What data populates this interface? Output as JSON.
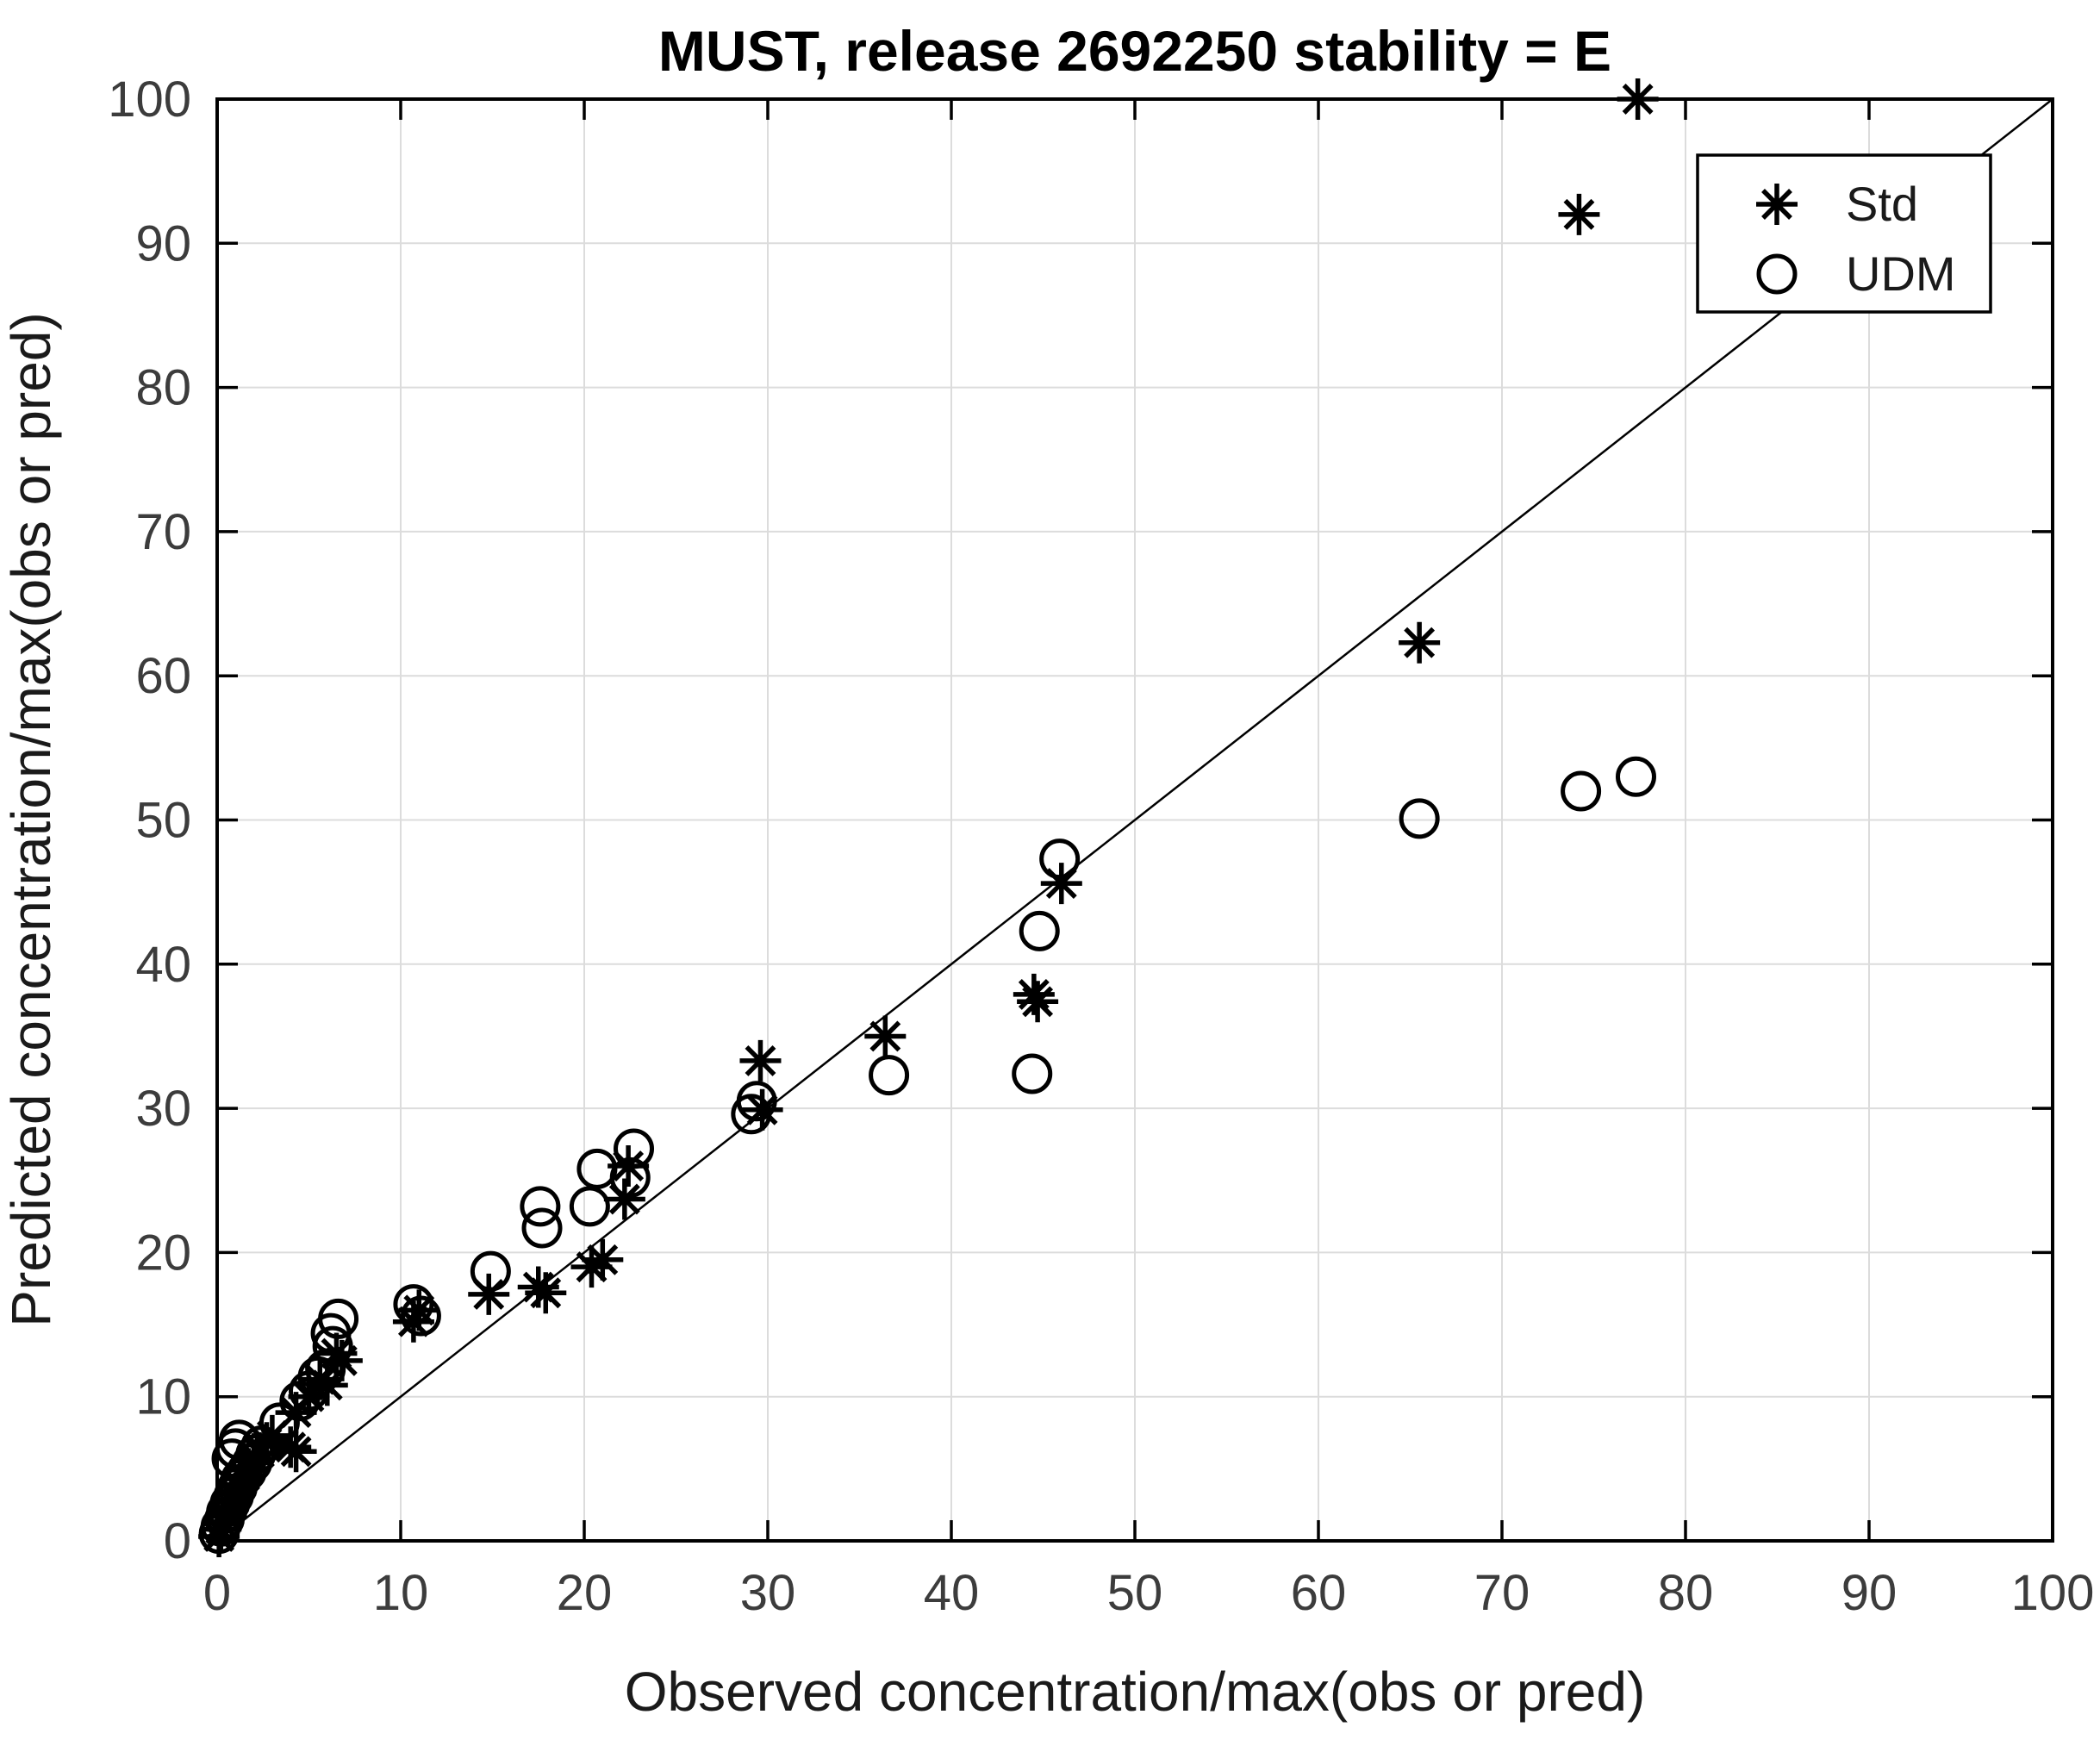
{
  "figure": {
    "background": "#ffffff"
  },
  "chart_data": {
    "type": "scatter",
    "title": "MUST, release 2692250 stability = E",
    "xlabel": "Observed concentration/max(obs or pred)",
    "ylabel": "Predicted concentration/max(obs or pred)",
    "xlim": [
      0,
      100
    ],
    "ylim": [
      0,
      100
    ],
    "xticks": [
      0,
      10,
      20,
      30,
      40,
      50,
      60,
      70,
      80,
      90,
      100
    ],
    "yticks": [
      0,
      10,
      20,
      30,
      40,
      50,
      60,
      70,
      80,
      90,
      100
    ],
    "grid": true,
    "legend_position": "top-right",
    "reference_line": {
      "name": "1:1 line",
      "from": [
        0,
        0
      ],
      "to": [
        100,
        100
      ]
    },
    "series": [
      {
        "name": "Std",
        "marker": "asterisk",
        "color": "#000000",
        "points": [
          [
            0.1,
            0.3
          ],
          [
            0.2,
            0.8
          ],
          [
            0.3,
            1.2
          ],
          [
            0.5,
            1.7
          ],
          [
            0.6,
            2.2
          ],
          [
            0.8,
            2.8
          ],
          [
            1.0,
            3.3
          ],
          [
            1.2,
            3.9
          ],
          [
            1.5,
            4.5
          ],
          [
            1.7,
            5.0
          ],
          [
            2.0,
            5.6
          ],
          [
            2.3,
            6.1
          ],
          [
            2.7,
            6.8
          ],
          [
            3.0,
            7.3
          ],
          [
            4.0,
            6.5
          ],
          [
            4.3,
            6.2
          ],
          [
            4.3,
            8.9
          ],
          [
            5.0,
            10.0
          ],
          [
            5.6,
            11.2
          ],
          [
            6.0,
            10.8
          ],
          [
            6.5,
            13.0
          ],
          [
            6.8,
            12.5
          ],
          [
            10.7,
            15.2
          ],
          [
            11.0,
            16.0
          ],
          [
            14.8,
            17.1
          ],
          [
            17.5,
            17.6
          ],
          [
            17.9,
            17.2
          ],
          [
            20.4,
            19.0
          ],
          [
            21.0,
            19.5
          ],
          [
            22.2,
            23.7
          ],
          [
            22.4,
            26.0
          ],
          [
            29.7,
            29.9
          ],
          [
            29.6,
            33.3
          ],
          [
            36.4,
            35.0
          ],
          [
            44.5,
            37.9
          ],
          [
            44.7,
            37.4
          ],
          [
            46.0,
            45.6
          ],
          [
            65.5,
            62.3
          ],
          [
            74.2,
            92.0
          ],
          [
            77.4,
            100.0
          ]
        ]
      },
      {
        "name": "UDM",
        "marker": "circle",
        "color": "#000000",
        "points": [
          [
            0.1,
            0.5
          ],
          [
            0.2,
            1.0
          ],
          [
            0.4,
            1.5
          ],
          [
            0.5,
            2.0
          ],
          [
            0.7,
            2.6
          ],
          [
            0.9,
            3.1
          ],
          [
            1.1,
            3.7
          ],
          [
            1.3,
            4.3
          ],
          [
            1.6,
            4.8
          ],
          [
            1.9,
            5.4
          ],
          [
            2.1,
            6.0
          ],
          [
            2.4,
            6.6
          ],
          [
            0.8,
            5.7
          ],
          [
            1.0,
            6.4
          ],
          [
            1.2,
            7.0
          ],
          [
            3.4,
            8.2
          ],
          [
            4.5,
            9.7
          ],
          [
            5.0,
            10.4
          ],
          [
            5.5,
            11.4
          ],
          [
            5.9,
            11.9
          ],
          [
            6.3,
            13.5
          ],
          [
            6.2,
            14.4
          ],
          [
            6.6,
            15.4
          ],
          [
            10.7,
            16.4
          ],
          [
            11.1,
            15.6
          ],
          [
            14.9,
            18.7
          ],
          [
            17.6,
            23.2
          ],
          [
            17.7,
            21.7
          ],
          [
            20.3,
            23.2
          ],
          [
            20.7,
            25.8
          ],
          [
            22.5,
            25.2
          ],
          [
            22.7,
            27.2
          ],
          [
            29.1,
            29.6
          ],
          [
            29.4,
            30.5
          ],
          [
            36.6,
            32.3
          ],
          [
            44.4,
            32.4
          ],
          [
            44.8,
            42.3
          ],
          [
            45.9,
            47.3
          ],
          [
            65.5,
            50.1
          ],
          [
            74.3,
            52.0
          ],
          [
            77.3,
            53.0
          ]
        ]
      }
    ]
  },
  "legend": {
    "items": [
      {
        "label": "Std",
        "marker": "asterisk-icon"
      },
      {
        "label": "UDM",
        "marker": "circle-icon"
      }
    ]
  },
  "colors": {
    "marker": "#000000",
    "grid": "#dcdcdc",
    "axis_box": "#000000",
    "tick_label": "#3c3c3c",
    "axis_label": "#1a1a1a",
    "title": "#000000",
    "background": "#ffffff"
  }
}
